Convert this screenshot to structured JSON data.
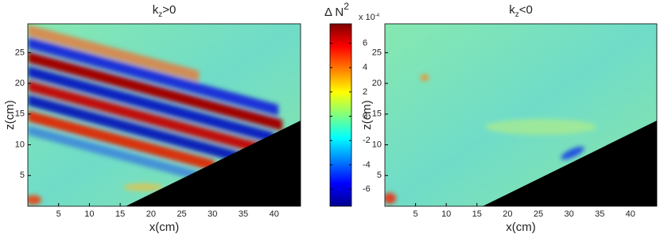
{
  "chart_data": [
    {
      "type": "heatmap",
      "title_parts": [
        "k",
        "z",
        ">0"
      ],
      "xlabel": "x(cm)",
      "ylabel": "z(cm)",
      "xlim": [
        0,
        44.3
      ],
      "ylim": [
        0,
        29.7
      ],
      "xticks": [
        5,
        10,
        15,
        20,
        25,
        30,
        35,
        40
      ],
      "yticks": [
        5,
        10,
        15,
        20,
        25
      ]
    },
    {
      "type": "heatmap",
      "title_parts": [
        "k",
        "z",
        "<0"
      ],
      "xlabel": "x(cm)",
      "ylabel": "z(cm)",
      "xlim": [
        0,
        44.3
      ],
      "ylim": [
        0,
        29.7
      ],
      "xticks": [
        5,
        10,
        15,
        20,
        25,
        30,
        35,
        40
      ],
      "yticks": [
        5,
        10,
        15,
        20,
        25
      ]
    }
  ],
  "colorbar": {
    "label": "Δ N",
    "label_sup": "2",
    "multiplier": "x 10",
    "multiplier_exp": "-4",
    "clim": [
      -7.4,
      7.6
    ],
    "ticks": [
      6,
      4,
      2,
      0,
      -2,
      -4,
      -6
    ]
  }
}
